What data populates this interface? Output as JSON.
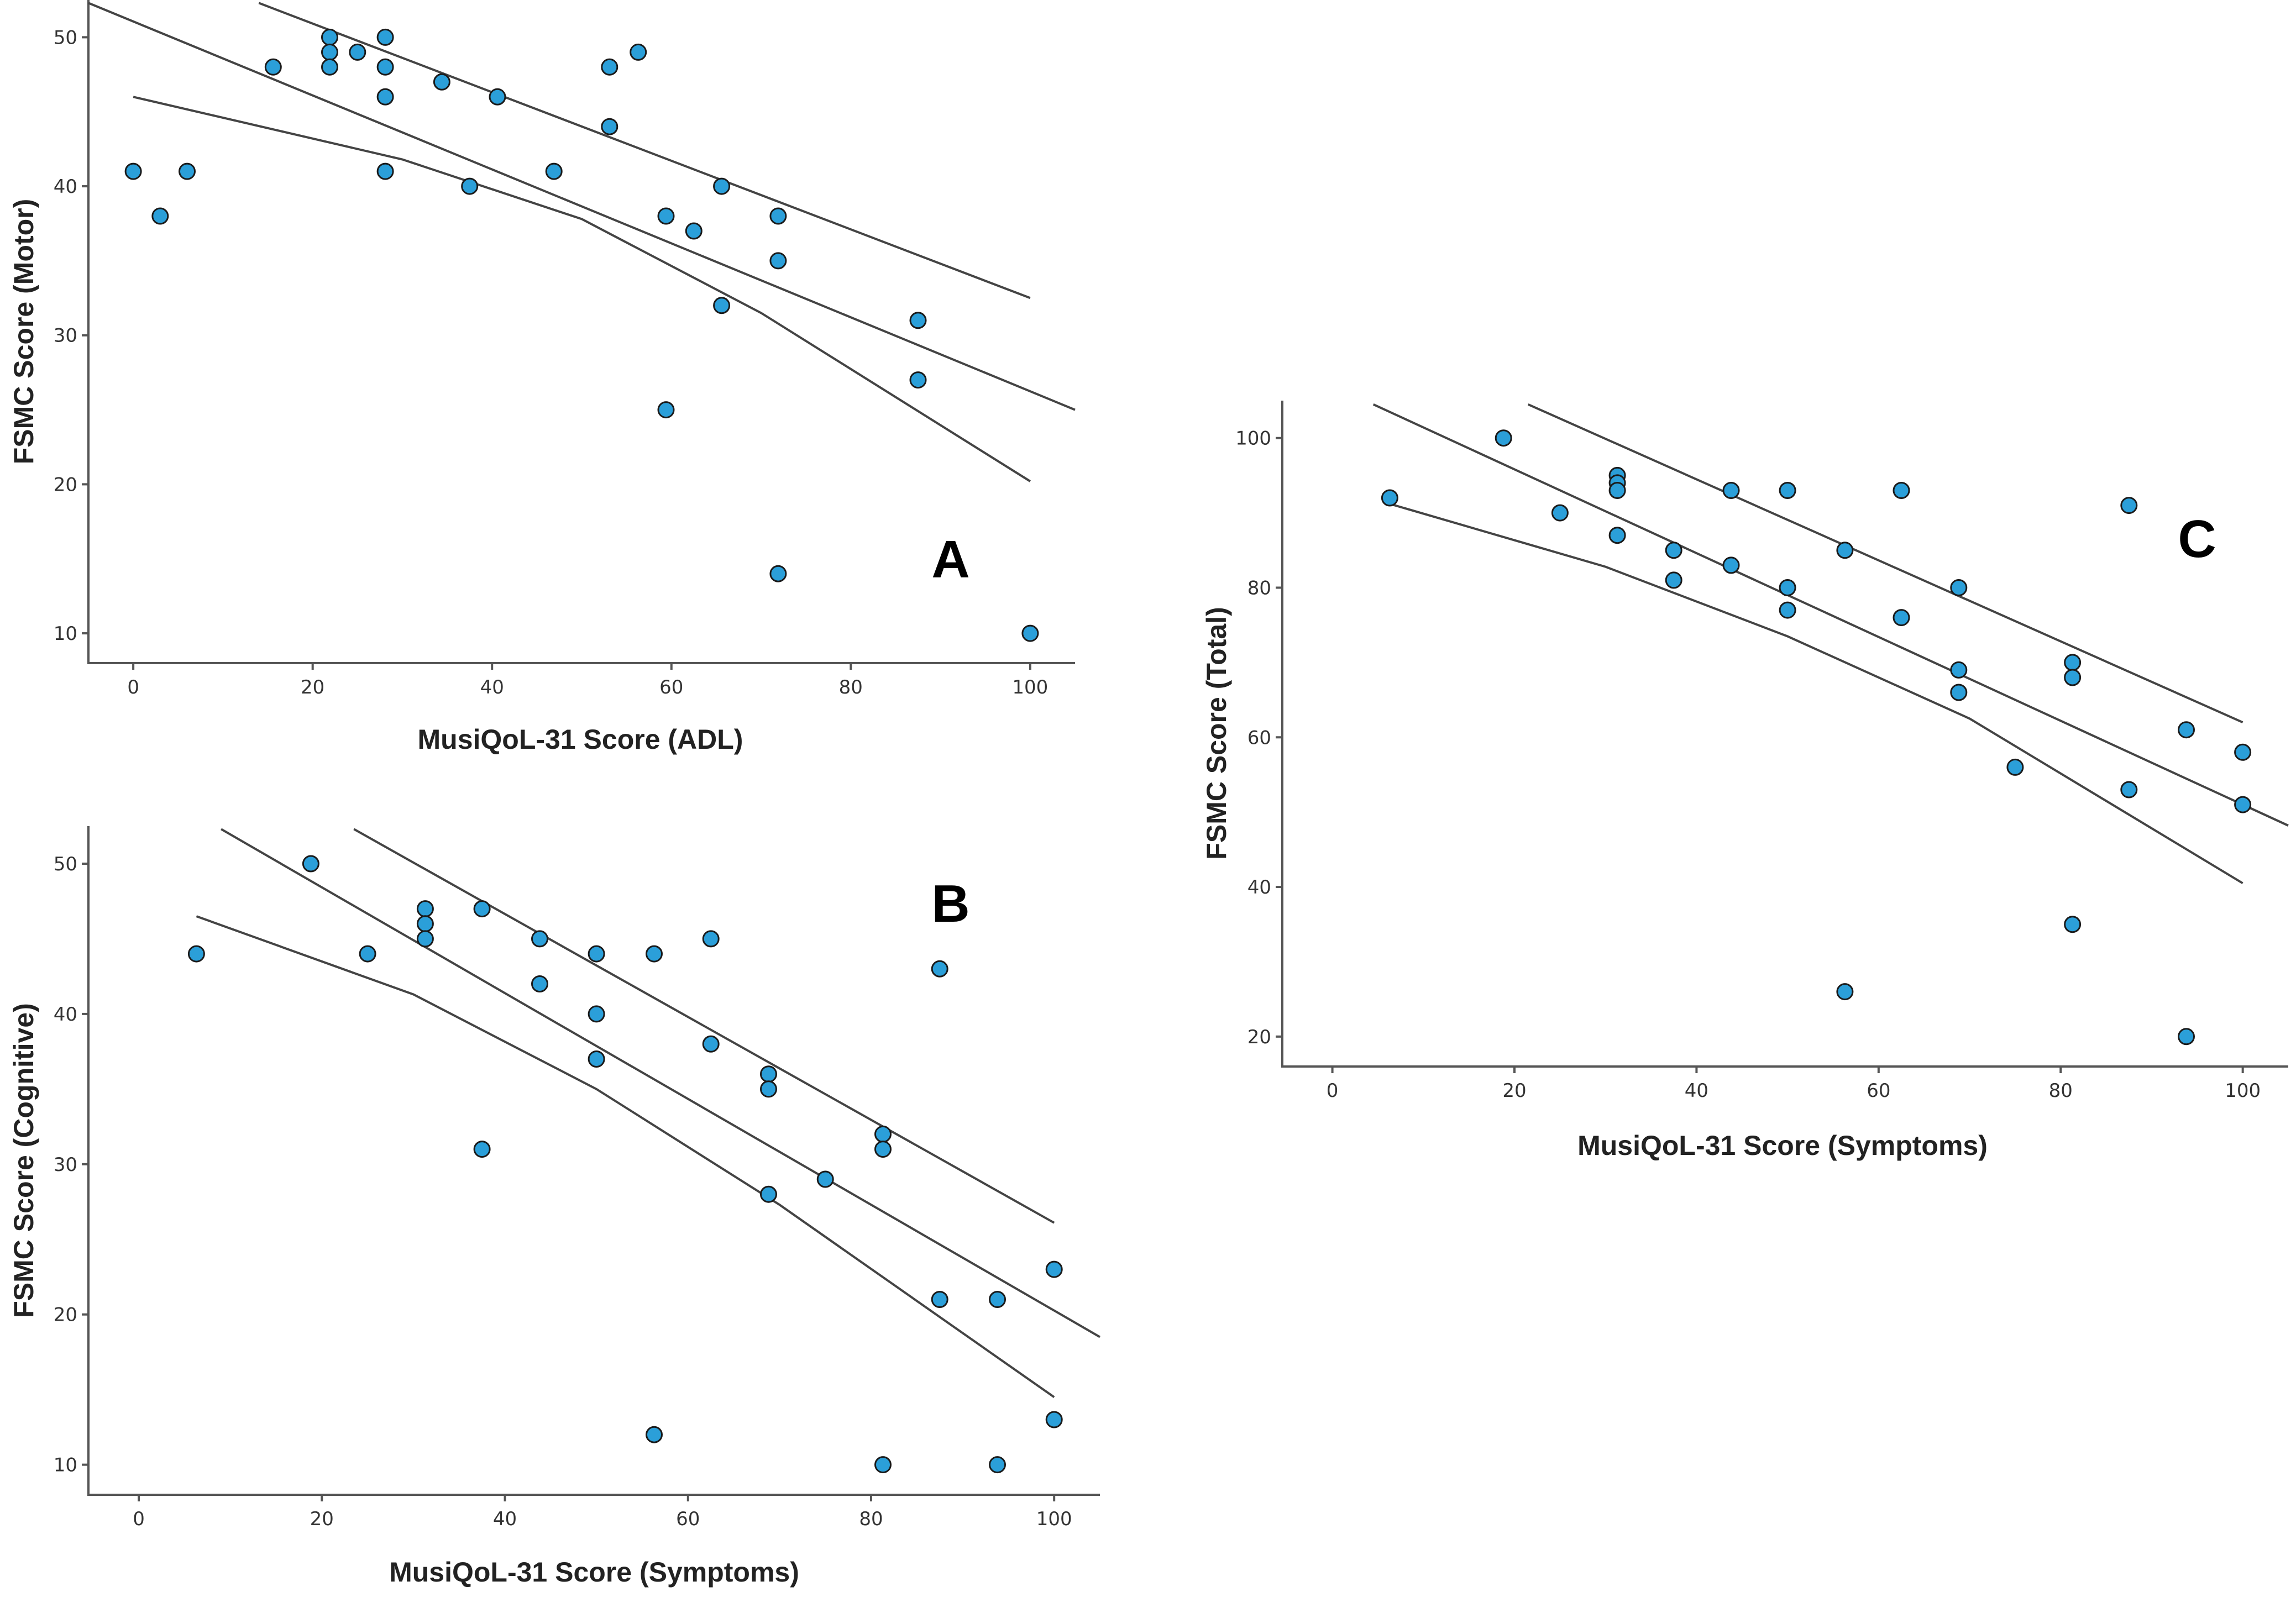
{
  "chart_data": [
    {
      "id": "A",
      "type": "scatter",
      "panel_letter": "A",
      "xlabel": "MusiQoL-31 Score (ADL)",
      "ylabel": "FSMC Score (Motor)",
      "xlim": [
        -5,
        105
      ],
      "ylim": [
        8,
        52.5
      ],
      "xticks": [
        0,
        20,
        40,
        60,
        80,
        100
      ],
      "yticks": [
        10,
        20,
        30,
        40,
        50
      ],
      "points": [
        {
          "x": 0,
          "y": 41
        },
        {
          "x": 3,
          "y": 38
        },
        {
          "x": 6,
          "y": 41
        },
        {
          "x": 15.6,
          "y": 48
        },
        {
          "x": 21.9,
          "y": 50
        },
        {
          "x": 21.9,
          "y": 49
        },
        {
          "x": 21.9,
          "y": 48
        },
        {
          "x": 25,
          "y": 49
        },
        {
          "x": 28.1,
          "y": 50
        },
        {
          "x": 28.1,
          "y": 48
        },
        {
          "x": 28.1,
          "y": 46
        },
        {
          "x": 28.1,
          "y": 41
        },
        {
          "x": 34.4,
          "y": 47
        },
        {
          "x": 37.5,
          "y": 40
        },
        {
          "x": 40.6,
          "y": 46
        },
        {
          "x": 46.9,
          "y": 41
        },
        {
          "x": 53.1,
          "y": 48
        },
        {
          "x": 53.1,
          "y": 44
        },
        {
          "x": 56.3,
          "y": 49
        },
        {
          "x": 59.4,
          "y": 38
        },
        {
          "x": 59.4,
          "y": 25
        },
        {
          "x": 62.5,
          "y": 37
        },
        {
          "x": 65.6,
          "y": 40
        },
        {
          "x": 65.6,
          "y": 32
        },
        {
          "x": 71.9,
          "y": 38
        },
        {
          "x": 71.9,
          "y": 35
        },
        {
          "x": 71.9,
          "y": 14
        },
        {
          "x": 87.5,
          "y": 31
        },
        {
          "x": 87.5,
          "y": 27
        },
        {
          "x": 100,
          "y": 10
        }
      ],
      "fit_lines": [
        {
          "name": "fit",
          "x": [
            -5,
            105
          ],
          "y": [
            52.3,
            25
          ]
        },
        {
          "name": "upper",
          "x": [
            14,
            100
          ],
          "y": [
            52.3,
            32.5
          ]
        },
        {
          "name": "lower",
          "x": [
            0,
            30,
            50,
            70,
            100
          ],
          "y": [
            46,
            41.8,
            37.8,
            31.5,
            20.2
          ]
        }
      ]
    },
    {
      "id": "B",
      "type": "scatter",
      "panel_letter": "B",
      "xlabel": "MusiQoL-31 Score (Symptoms)",
      "ylabel": "FSMC Score (Cognitive)",
      "xlim": [
        -5.5,
        105
      ],
      "ylim": [
        8,
        52.5
      ],
      "xticks": [
        0,
        20,
        40,
        60,
        80,
        100
      ],
      "yticks": [
        10,
        20,
        30,
        40,
        50
      ],
      "points": [
        {
          "x": 6.3,
          "y": 44
        },
        {
          "x": 18.8,
          "y": 50
        },
        {
          "x": 25,
          "y": 44
        },
        {
          "x": 31.3,
          "y": 47
        },
        {
          "x": 31.3,
          "y": 46
        },
        {
          "x": 31.3,
          "y": 45
        },
        {
          "x": 37.5,
          "y": 47
        },
        {
          "x": 37.5,
          "y": 31
        },
        {
          "x": 43.8,
          "y": 45
        },
        {
          "x": 43.8,
          "y": 42
        },
        {
          "x": 50,
          "y": 44
        },
        {
          "x": 50,
          "y": 40
        },
        {
          "x": 50,
          "y": 37
        },
        {
          "x": 56.3,
          "y": 44
        },
        {
          "x": 56.3,
          "y": 12
        },
        {
          "x": 62.5,
          "y": 45
        },
        {
          "x": 62.5,
          "y": 38
        },
        {
          "x": 68.8,
          "y": 36
        },
        {
          "x": 68.8,
          "y": 35
        },
        {
          "x": 68.8,
          "y": 28
        },
        {
          "x": 75,
          "y": 29
        },
        {
          "x": 81.3,
          "y": 32
        },
        {
          "x": 81.3,
          "y": 31
        },
        {
          "x": 81.3,
          "y": 10
        },
        {
          "x": 87.5,
          "y": 43
        },
        {
          "x": 87.5,
          "y": 21
        },
        {
          "x": 93.8,
          "y": 21
        },
        {
          "x": 93.8,
          "y": 10
        },
        {
          "x": 100,
          "y": 23
        },
        {
          "x": 100,
          "y": 13
        }
      ],
      "fit_lines": [
        {
          "name": "fit",
          "x": [
            9,
            105
          ],
          "y": [
            52.3,
            18.5
          ]
        },
        {
          "name": "upper",
          "x": [
            23.5,
            100
          ],
          "y": [
            52.3,
            26.1
          ]
        },
        {
          "name": "lower",
          "x": [
            6.3,
            30,
            50,
            70,
            100
          ],
          "y": [
            46.5,
            41.3,
            35,
            27.3,
            14.5
          ]
        }
      ]
    },
    {
      "id": "C",
      "type": "scatter",
      "panel_letter": "C",
      "xlabel": "MusiQoL-31 Score (Symptoms)",
      "ylabel": "FSMC Score (Total)",
      "xlim": [
        -5.5,
        105
      ],
      "ylim": [
        16,
        105
      ],
      "xticks": [
        0,
        20,
        40,
        60,
        80,
        100
      ],
      "yticks": [
        20,
        40,
        60,
        80,
        100
      ],
      "points": [
        {
          "x": 6.3,
          "y": 92
        },
        {
          "x": 18.8,
          "y": 100
        },
        {
          "x": 25,
          "y": 90
        },
        {
          "x": 31.3,
          "y": 95
        },
        {
          "x": 31.3,
          "y": 94
        },
        {
          "x": 31.3,
          "y": 93
        },
        {
          "x": 31.3,
          "y": 87
        },
        {
          "x": 37.5,
          "y": 85
        },
        {
          "x": 37.5,
          "y": 81
        },
        {
          "x": 43.8,
          "y": 93
        },
        {
          "x": 43.8,
          "y": 83
        },
        {
          "x": 50,
          "y": 93
        },
        {
          "x": 50,
          "y": 80
        },
        {
          "x": 50,
          "y": 77
        },
        {
          "x": 56.3,
          "y": 85
        },
        {
          "x": 56.3,
          "y": 26
        },
        {
          "x": 62.5,
          "y": 93
        },
        {
          "x": 62.5,
          "y": 76
        },
        {
          "x": 68.8,
          "y": 80
        },
        {
          "x": 68.8,
          "y": 69
        },
        {
          "x": 68.8,
          "y": 66
        },
        {
          "x": 75,
          "y": 56
        },
        {
          "x": 81.3,
          "y": 70
        },
        {
          "x": 81.3,
          "y": 68
        },
        {
          "x": 81.3,
          "y": 35
        },
        {
          "x": 87.5,
          "y": 91
        },
        {
          "x": 87.5,
          "y": 53
        },
        {
          "x": 93.8,
          "y": 61
        },
        {
          "x": 93.8,
          "y": 20
        },
        {
          "x": 100,
          "y": 58
        },
        {
          "x": 100,
          "y": 51
        }
      ],
      "fit_lines": [
        {
          "name": "fit",
          "x": [
            4.5,
            105
          ],
          "y": [
            104.5,
            48.2
          ]
        },
        {
          "name": "upper",
          "x": [
            21.5,
            100
          ],
          "y": [
            104.5,
            62
          ]
        },
        {
          "name": "lower",
          "x": [
            6.3,
            30,
            50,
            70,
            100
          ],
          "y": [
            91.2,
            82.8,
            73.5,
            62.5,
            40.5
          ]
        }
      ]
    }
  ]
}
